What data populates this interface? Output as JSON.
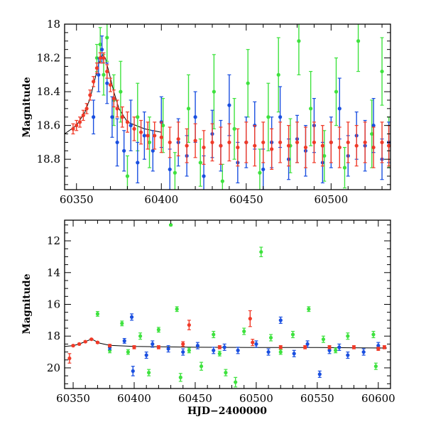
{
  "colors": {
    "green": "#3ee23e",
    "blue": "#1a4fe0",
    "red": "#f03a28",
    "model": "#000000"
  },
  "chart_data": [
    {
      "type": "scatter",
      "title": "",
      "xlabel": "",
      "ylabel": "Magnitude",
      "xlim": [
        60343,
        60535
      ],
      "ylim": [
        18.98,
        18.0
      ],
      "y_inverted": true,
      "grid": false,
      "x_ticks": [
        60350,
        60400,
        60450,
        60500
      ],
      "x_ticklabels": [
        "60350",
        "60400",
        "60450",
        "60500"
      ],
      "x_minor_step": 10,
      "y_ticks": [
        18.0,
        18.2,
        18.4,
        18.6,
        18.8
      ],
      "y_ticklabels": [
        "18",
        "18.2",
        "18.4",
        "18.6",
        "18.8"
      ],
      "y_minor_step": 0.05,
      "model_curve": {
        "x": [
          60343,
          60350,
          60355,
          60358,
          60361,
          60363,
          60365,
          60367,
          60369,
          60372,
          60375,
          60380,
          60390,
          60400
        ],
        "y": [
          18.65,
          18.6,
          18.52,
          18.44,
          18.32,
          18.24,
          18.18,
          18.2,
          18.28,
          18.4,
          18.5,
          18.58,
          18.62,
          18.64
        ]
      },
      "series": [
        {
          "color": "green",
          "points": [
            [
              60362,
              18.2,
              0.08
            ],
            [
              60364,
              18.12,
              0.1
            ],
            [
              60366,
              18.3,
              0.12
            ],
            [
              60368,
              18.08,
              0.14
            ],
            [
              60372,
              18.45,
              0.15
            ],
            [
              60376,
              18.4,
              0.18
            ],
            [
              60380,
              18.9,
              0.12
            ],
            [
              60386,
              18.55,
              0.2
            ],
            [
              60393,
              18.7,
              0.15
            ],
            [
              60401,
              18.6,
              0.16
            ],
            [
              60408,
              18.88,
              0.12
            ],
            [
              60416,
              18.5,
              0.2
            ],
            [
              60423,
              18.82,
              0.14
            ],
            [
              60431,
              18.4,
              0.22
            ],
            [
              60436,
              18.93,
              0.1
            ],
            [
              60443,
              18.62,
              0.18
            ],
            [
              60451,
              18.35,
              0.2
            ],
            [
              60458,
              18.88,
              0.14
            ],
            [
              60463,
              18.55,
              0.2
            ],
            [
              60469,
              18.3,
              0.22
            ],
            [
              60476,
              18.72,
              0.16
            ],
            [
              60481,
              18.1,
              0.2
            ],
            [
              60488,
              18.5,
              0.22
            ],
            [
              60496,
              18.78,
              0.15
            ],
            [
              60503,
              18.4,
              0.2
            ],
            [
              60508,
              18.85,
              0.12
            ],
            [
              60516,
              18.1,
              0.18
            ],
            [
              60524,
              18.65,
              0.2
            ],
            [
              60530,
              18.28,
              0.2
            ],
            [
              60534,
              18.7,
              0.15
            ]
          ]
        },
        {
          "color": "blue",
          "points": [
            [
              60360,
              18.55,
              0.1
            ],
            [
              60363,
              18.3,
              0.1
            ],
            [
              60365,
              18.15,
              0.08
            ],
            [
              60368,
              18.35,
              0.12
            ],
            [
              60371,
              18.55,
              0.12
            ],
            [
              60374,
              18.7,
              0.14
            ],
            [
              60378,
              18.75,
              0.12
            ],
            [
              60382,
              18.6,
              0.15
            ],
            [
              60386,
              18.82,
              0.12
            ],
            [
              60390,
              18.66,
              0.14
            ],
            [
              60395,
              18.75,
              0.12
            ],
            [
              60400,
              18.58,
              0.15
            ],
            [
              60405,
              18.86,
              0.12
            ],
            [
              60410,
              18.7,
              0.14
            ],
            [
              60415,
              18.78,
              0.12
            ],
            [
              60420,
              18.55,
              0.15
            ],
            [
              60425,
              18.9,
              0.12
            ],
            [
              60430,
              18.65,
              0.14
            ],
            [
              60435,
              18.72,
              0.15
            ],
            [
              60440,
              18.48,
              0.18
            ],
            [
              60445,
              18.82,
              0.12
            ],
            [
              60450,
              18.7,
              0.15
            ],
            [
              60455,
              18.6,
              0.14
            ],
            [
              60460,
              18.86,
              0.12
            ],
            [
              60465,
              18.7,
              0.15
            ],
            [
              60470,
              18.55,
              0.18
            ],
            [
              60475,
              18.8,
              0.12
            ],
            [
              60480,
              18.68,
              0.14
            ],
            [
              60485,
              18.75,
              0.15
            ],
            [
              60490,
              18.6,
              0.16
            ],
            [
              60495,
              18.82,
              0.12
            ],
            [
              60500,
              18.7,
              0.15
            ],
            [
              60505,
              18.5,
              0.18
            ],
            [
              60510,
              18.78,
              0.12
            ],
            [
              60515,
              18.66,
              0.14
            ],
            [
              60520,
              18.72,
              0.15
            ],
            [
              60525,
              18.6,
              0.16
            ],
            [
              60530,
              18.8,
              0.12
            ],
            [
              60534,
              18.7,
              0.12
            ]
          ]
        },
        {
          "color": "red",
          "points": [
            [
              60348,
              18.62,
              0.03
            ],
            [
              60350,
              18.6,
              0.03
            ],
            [
              60352,
              18.58,
              0.03
            ],
            [
              60354,
              18.54,
              0.03
            ],
            [
              60356,
              18.5,
              0.03
            ],
            [
              60358,
              18.42,
              0.03
            ],
            [
              60360,
              18.34,
              0.03
            ],
            [
              60362,
              18.26,
              0.03
            ],
            [
              60364,
              18.2,
              0.03
            ],
            [
              60366,
              18.2,
              0.03
            ],
            [
              60368,
              18.28,
              0.04
            ],
            [
              60370,
              18.36,
              0.04
            ],
            [
              60372,
              18.44,
              0.05
            ],
            [
              60374,
              18.5,
              0.05
            ],
            [
              60377,
              18.55,
              0.06
            ],
            [
              60380,
              18.58,
              0.06
            ],
            [
              60384,
              18.62,
              0.07
            ],
            [
              60388,
              18.64,
              0.07
            ],
            [
              60392,
              18.66,
              0.08
            ],
            [
              60396,
              18.66,
              0.08
            ],
            [
              60400,
              18.67,
              0.09
            ],
            [
              60405,
              18.7,
              0.09
            ],
            [
              60410,
              18.68,
              0.1
            ],
            [
              60415,
              18.72,
              0.1
            ],
            [
              60420,
              18.69,
              0.1
            ],
            [
              60425,
              18.73,
              0.1
            ],
            [
              60430,
              18.7,
              0.11
            ],
            [
              60435,
              18.72,
              0.11
            ],
            [
              60440,
              18.7,
              0.11
            ],
            [
              60445,
              18.73,
              0.11
            ],
            [
              60450,
              18.7,
              0.12
            ],
            [
              60455,
              18.72,
              0.12
            ],
            [
              60460,
              18.7,
              0.12
            ],
            [
              60465,
              18.74,
              0.12
            ],
            [
              60470,
              18.7,
              0.12
            ],
            [
              60475,
              18.72,
              0.12
            ],
            [
              60480,
              18.7,
              0.12
            ],
            [
              60485,
              18.73,
              0.12
            ],
            [
              60490,
              18.7,
              0.12
            ],
            [
              60495,
              18.72,
              0.12
            ],
            [
              60500,
              18.7,
              0.12
            ],
            [
              60505,
              18.73,
              0.12
            ],
            [
              60510,
              18.7,
              0.12
            ],
            [
              60515,
              18.72,
              0.12
            ],
            [
              60520,
              18.7,
              0.12
            ],
            [
              60525,
              18.73,
              0.12
            ],
            [
              60530,
              18.7,
              0.12
            ],
            [
              60534,
              18.72,
              0.12
            ]
          ]
        }
      ]
    },
    {
      "type": "scatter",
      "title": "",
      "xlabel": "HJD−2400000",
      "ylabel": "Magnitude",
      "xlim": [
        60343,
        60610
      ],
      "ylim": [
        21.3,
        10.7
      ],
      "y_inverted": true,
      "grid": false,
      "x_ticks": [
        60350,
        60400,
        60450,
        60500,
        60550,
        60600
      ],
      "x_ticklabels": [
        "60350",
        "60400",
        "60450",
        "60500",
        "60550",
        "60600"
      ],
      "x_minor_step": 10,
      "y_ticks": [
        12,
        14,
        16,
        18,
        20
      ],
      "y_ticklabels": [
        "12",
        "14",
        "16",
        "18",
        "20"
      ],
      "y_minor_step": 0.5,
      "model_curve": {
        "x": [
          60343,
          60350,
          60355,
          60360,
          60363,
          60365,
          60368,
          60372,
          60380,
          60400,
          60450,
          60500,
          60550,
          60607
        ],
        "y": [
          18.65,
          18.6,
          18.5,
          18.35,
          18.25,
          18.18,
          18.3,
          18.45,
          18.58,
          18.65,
          18.7,
          18.72,
          18.72,
          18.75
        ]
      },
      "series": [
        {
          "color": "green",
          "points": [
            [
              60370,
              16.6,
              0.15
            ],
            [
              60390,
              17.2,
              0.15
            ],
            [
              60405,
              18.0,
              0.2
            ],
            [
              60412,
              20.3,
              0.2
            ],
            [
              60420,
              17.6,
              0.15
            ],
            [
              60430,
              11.0,
              0.05
            ],
            [
              60435,
              16.3,
              0.15
            ],
            [
              60438,
              20.6,
              0.25
            ],
            [
              60455,
              19.9,
              0.25
            ],
            [
              60465,
              17.9,
              0.2
            ],
            [
              60475,
              20.3,
              0.2
            ],
            [
              60483,
              20.9,
              0.3
            ],
            [
              60490,
              17.7,
              0.2
            ],
            [
              60504,
              12.7,
              0.3
            ],
            [
              60512,
              18.1,
              0.2
            ],
            [
              60530,
              17.9,
              0.2
            ],
            [
              60543,
              16.3,
              0.15
            ],
            [
              60555,
              18.2,
              0.2
            ],
            [
              60575,
              18.0,
              0.2
            ],
            [
              60596,
              17.9,
              0.2
            ],
            [
              60598,
              19.9,
              0.2
            ],
            [
              60380,
              18.9,
              0.15
            ],
            [
              60395,
              19.0,
              0.15
            ],
            [
              60445,
              18.9,
              0.15
            ],
            [
              60470,
              19.1,
              0.15
            ],
            [
              60520,
              19.0,
              0.15
            ],
            [
              60565,
              18.9,
              0.15
            ]
          ]
        },
        {
          "color": "blue",
          "points": [
            [
              60392,
              18.3,
              0.15
            ],
            [
              60398,
              16.8,
              0.2
            ],
            [
              60399,
              20.2,
              0.3
            ],
            [
              60415,
              18.5,
              0.2
            ],
            [
              60428,
              18.8,
              0.2
            ],
            [
              60452,
              18.6,
              0.2
            ],
            [
              60465,
              18.9,
              0.2
            ],
            [
              60474,
              18.7,
              0.2
            ],
            [
              60500,
              18.5,
              0.2
            ],
            [
              60520,
              17.0,
              0.2
            ],
            [
              60531,
              19.1,
              0.2
            ],
            [
              60542,
              18.5,
              0.2
            ],
            [
              60552,
              20.4,
              0.2
            ],
            [
              60560,
              18.9,
              0.2
            ],
            [
              60575,
              19.2,
              0.2
            ],
            [
              60588,
              19.0,
              0.2
            ],
            [
              60600,
              18.6,
              0.2
            ],
            [
              60380,
              18.7,
              0.15
            ],
            [
              60410,
              19.2,
              0.2
            ],
            [
              60440,
              19.0,
              0.2
            ],
            [
              60485,
              18.9,
              0.2
            ],
            [
              60510,
              19.0,
              0.2
            ],
            [
              60568,
              18.7,
              0.2
            ]
          ]
        },
        {
          "color": "red",
          "points": [
            [
              60347,
              19.4,
              0.3
            ],
            [
              60350,
              18.6,
              0.05
            ],
            [
              60355,
              18.5,
              0.05
            ],
            [
              60360,
              18.35,
              0.05
            ],
            [
              60365,
              18.2,
              0.05
            ],
            [
              60370,
              18.4,
              0.05
            ],
            [
              60380,
              18.6,
              0.08
            ],
            [
              60400,
              18.7,
              0.1
            ],
            [
              60420,
              18.7,
              0.1
            ],
            [
              60440,
              18.5,
              0.15
            ],
            [
              60445,
              17.3,
              0.3
            ],
            [
              60470,
              18.7,
              0.1
            ],
            [
              60495,
              16.9,
              0.5
            ],
            [
              60497,
              18.4,
              0.2
            ],
            [
              60520,
              18.7,
              0.1
            ],
            [
              60540,
              18.7,
              0.1
            ],
            [
              60560,
              18.7,
              0.1
            ],
            [
              60580,
              18.7,
              0.1
            ],
            [
              60600,
              18.8,
              0.1
            ],
            [
              60605,
              18.7,
              0.1
            ]
          ]
        }
      ]
    }
  ]
}
